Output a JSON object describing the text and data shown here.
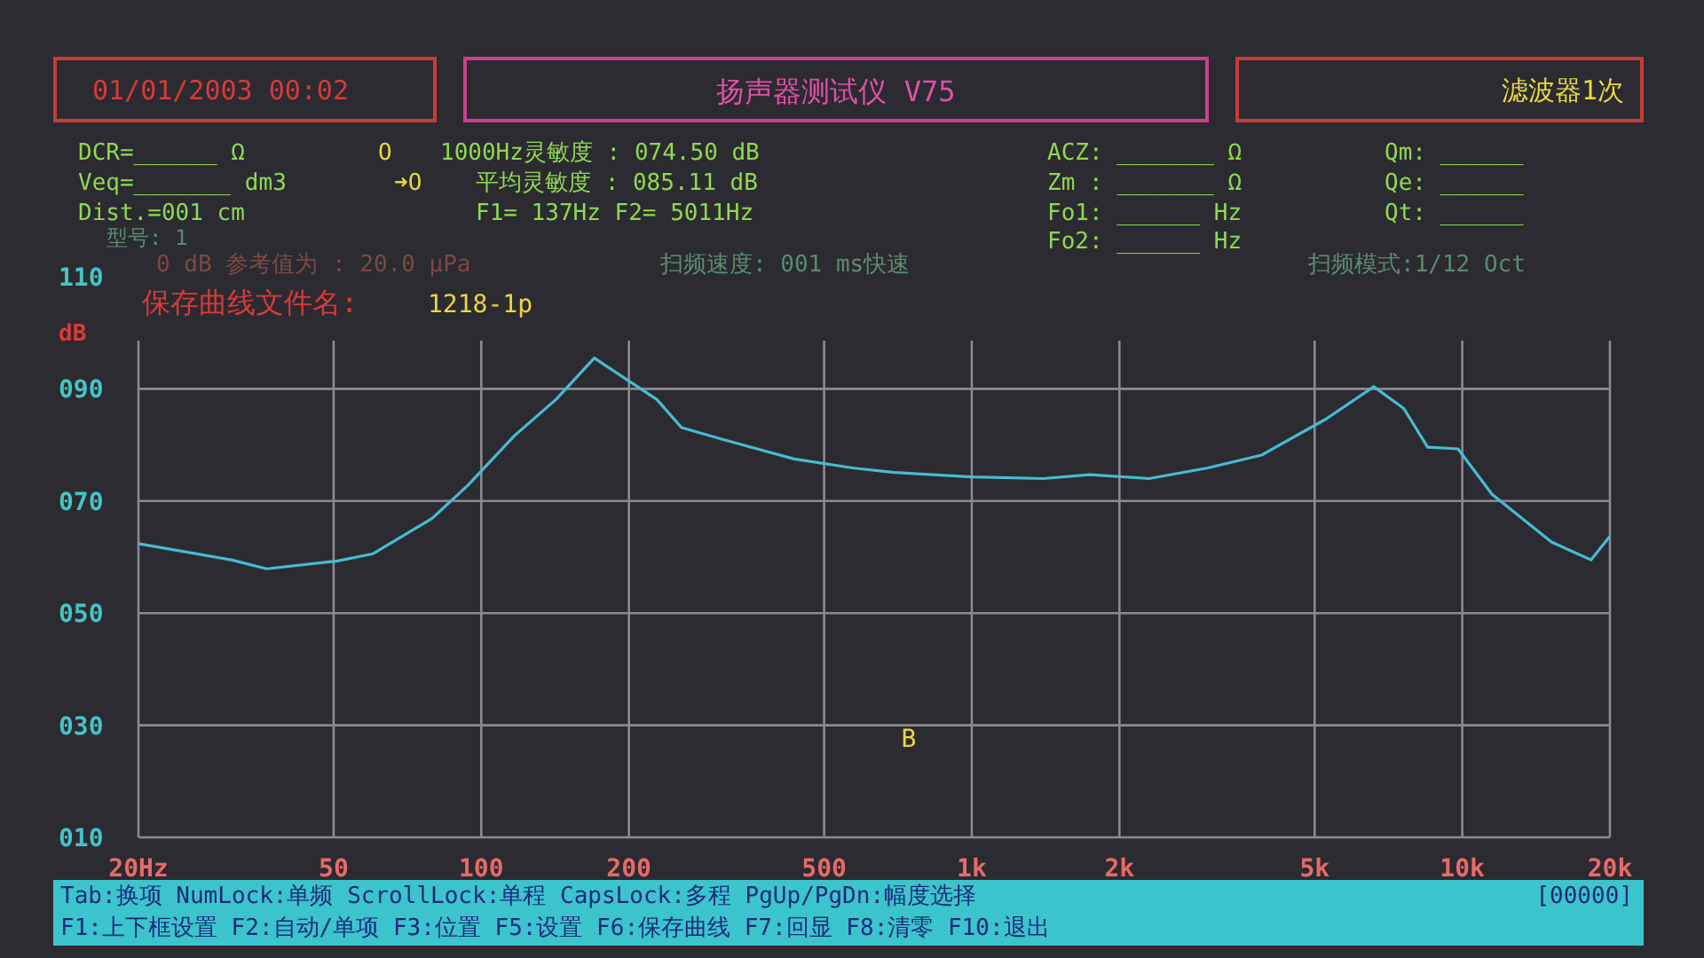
{
  "chart_data": {
    "type": "line",
    "title": "扬声器测试仪 V75",
    "ylabel": "dB",
    "log": "x",
    "grid": true,
    "marker": "none",
    "line_style": "solid",
    "color": "#45bcd2",
    "x": [
      20,
      30.9,
      36.5,
      50.9,
      60.2,
      79.4,
      93.9,
      117,
      142,
      170,
      193,
      228,
      256,
      310,
      434,
      571,
      694,
      998,
      1397,
      1741,
      2300,
      3030,
      3900,
      5270,
      6600,
      7600,
      8500,
      9800,
      11500,
      15200,
      18300,
      20000
    ],
    "values": [
      62.4,
      59.5,
      57.9,
      59.3,
      60.6,
      66.9,
      72.8,
      81.7,
      88.1,
      95.5,
      92.3,
      88.1,
      83.1,
      81.0,
      77.5,
      75.9,
      75.1,
      74.3,
      74.0,
      74.7,
      74.0,
      75.9,
      78.2,
      84.6,
      90.4,
      86.5,
      79.6,
      79.3,
      71.2,
      62.7,
      59.5,
      63.7
    ],
    "xlim": [
      20,
      20000
    ],
    "xticks": [
      {
        "value": 20,
        "label": "20Hz"
      },
      50,
      100,
      200,
      500,
      {
        "value": 1000,
        "label": "1k"
      },
      {
        "value": 2000,
        "label": "2k"
      },
      {
        "value": 5000,
        "label": "5k"
      },
      {
        "value": 10000,
        "label": "10k"
      },
      {
        "value": 20000,
        "label": "20k"
      }
    ],
    "ylim": [
      10,
      110
    ],
    "yticks": [
      {
        "value": 10,
        "label": "010"
      },
      {
        "value": 30,
        "label": "030"
      },
      {
        "value": 50,
        "label": "050"
      },
      {
        "value": 70,
        "label": "070"
      },
      {
        "value": 90,
        "label": "090"
      },
      110
    ],
    "annotations": [
      "01/01/2003 00:02",
      "滤波器1次",
      "DCR=______ Ω",
      "O",
      "1000Hz灵敏度  : 074.50 dB",
      "ACZ: _______ Ω",
      "Qm: ______",
      "Veq=_______ dm3",
      "➜O",
      "平均灵敏度  : 085.11 dB",
      "Zm : _______ Ω",
      "Qe: ______",
      "Dist.=001 cm",
      "F1=  137Hz  F2= 5011Hz",
      "Fo1: ______ Hz",
      "Qt: ______",
      "型号:  1",
      "Fo2: ______ Hz",
      "0 dB 参考值为 : 20.0 μPa",
      "扫频速度: 001 ms快速",
      "扫频模式:1/12 Oct",
      "保存曲线文件名:",
      "1218-1p",
      "Tab:换项 NumLock:单频 ScrollLock:单程 CapsLock:多程 PgUp/PgDn:幅度选择",
      "[00000]",
      "F1:上下框设置 F2:自动/单项 F3:位置 F5:设置 F6:保存曲线 F7:回显 F8:清零 F10:退出",
      "B"
    ]
  }
}
